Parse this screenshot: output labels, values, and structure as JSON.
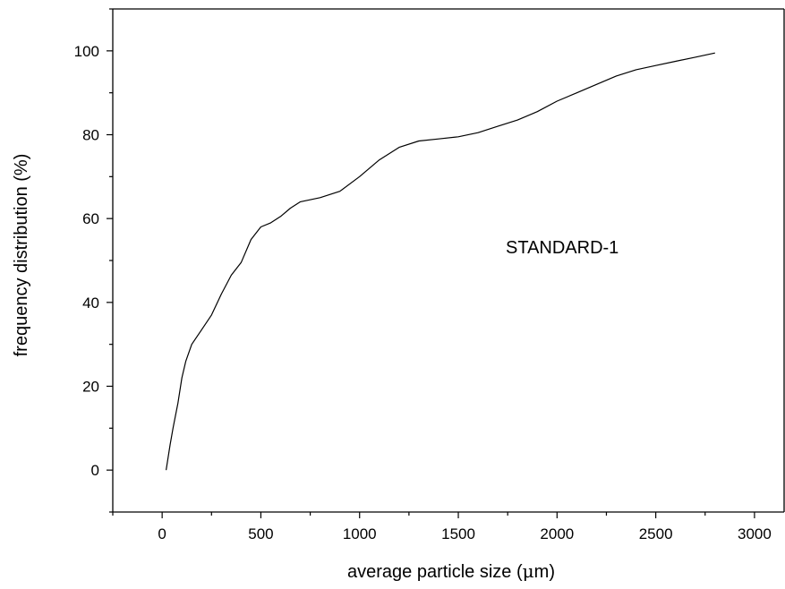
{
  "chart_data": {
    "type": "line",
    "xlabel_text": "average particle size (",
    "xlabel_unit": "μ",
    "xlabel_suffix": "m)",
    "ylabel": "frequency distribution (%)",
    "xlim": [
      -250,
      3150
    ],
    "ylim": [
      -10,
      110
    ],
    "xticks": [
      0,
      500,
      1000,
      1500,
      2000,
      2500,
      3000
    ],
    "yticks": [
      0,
      20,
      40,
      60,
      80,
      100
    ],
    "grid": false,
    "annotation": "STANDARD-1",
    "series": [
      {
        "color": "#000000",
        "x": [
          20,
          40,
          55,
          80,
          100,
          120,
          150,
          200,
          250,
          300,
          350,
          400,
          450,
          500,
          550,
          600,
          650,
          700,
          800,
          900,
          1000,
          1100,
          1200,
          1300,
          1400,
          1500,
          1600,
          1700,
          1800,
          1900,
          2000,
          2100,
          2200,
          2300,
          2400,
          2500,
          2600,
          2700,
          2800
        ],
        "y": [
          0,
          6,
          10,
          16,
          22,
          26,
          30,
          33.5,
          37,
          42,
          46.5,
          49.5,
          55,
          58,
          59,
          60.5,
          62.5,
          64,
          65,
          66.5,
          70,
          74,
          77,
          78.5,
          79,
          79.5,
          80.5,
          82,
          83.5,
          85.5,
          88,
          90,
          92,
          94,
          95.5,
          96.5,
          97.5,
          98.5,
          99.5
        ]
      }
    ]
  }
}
